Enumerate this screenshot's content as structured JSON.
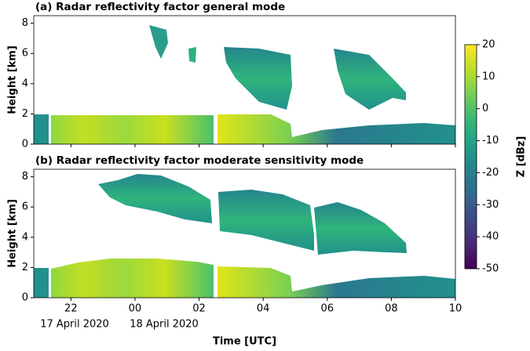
{
  "chart_data": [
    {
      "type": "heatmap",
      "title": "(a) Radar reflectivity factor general mode",
      "ylabel": "Height [km]",
      "ylim": [
        0,
        8.5
      ],
      "yticks": [
        0,
        2,
        4,
        6,
        8
      ]
    },
    {
      "type": "heatmap",
      "title": "(b) Radar reflectivity factor moderate sensitivity mode",
      "ylabel": "Height [km]",
      "ylim": [
        0,
        8.5
      ],
      "yticks": [
        0,
        2,
        4,
        6,
        8
      ],
      "xlabel": "Time [UTC]",
      "date_labels": [
        "17 April 2020",
        "18 April 2020"
      ],
      "xlim": [
        20.84,
        34
      ],
      "xticks": [
        22,
        {
          "value": 24,
          "label": "00"
        },
        {
          "value": 26,
          "label": "02"
        },
        {
          "value": 28,
          "label": "04"
        },
        {
          "value": 30,
          "label": "06"
        },
        {
          "value": 32,
          "label": "08"
        },
        {
          "value": 34,
          "label": "10"
        }
      ]
    }
  ],
  "colorbar": {
    "label": "Z [dBz]",
    "lim": [
      -50,
      20
    ],
    "ticks": [
      -50,
      -40,
      -30,
      -20,
      -10,
      0,
      10,
      20
    ]
  }
}
